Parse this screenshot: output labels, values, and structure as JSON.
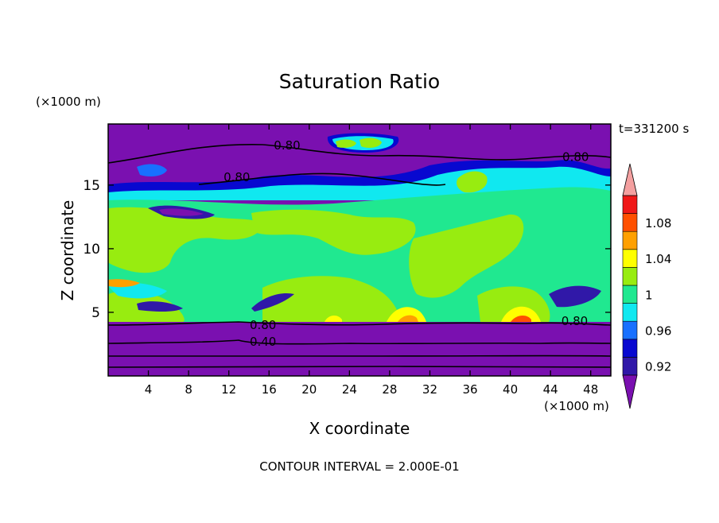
{
  "chart_data": {
    "type": "heatmap",
    "title": "Saturation Ratio",
    "xlabel": "X coordinate",
    "ylabel": "Z coordinate",
    "x_unit": "(×1000 m)",
    "y_unit": "(×1000 m)",
    "time_label": "t=331200 s",
    "footer": "CONTOUR INTERVAL = 2.000E-01",
    "xlim": [
      0,
      50
    ],
    "ylim": [
      0,
      19.8
    ],
    "x_ticks": [
      4,
      8,
      12,
      16,
      20,
      24,
      28,
      32,
      36,
      40,
      44,
      48
    ],
    "y_ticks": [
      5,
      10,
      15
    ],
    "colorbar": {
      "levels": [
        0.92,
        0.94,
        0.96,
        0.98,
        1.0,
        1.02,
        1.04,
        1.06,
        1.08,
        1.1
      ],
      "tick_labels": [
        "0.92",
        "0.96",
        "1",
        "1.04",
        "1.08"
      ],
      "tick_values": [
        0.92,
        0.96,
        1.0,
        1.04,
        1.08
      ],
      "colors": [
        "#7a10b0",
        "#3018a8",
        "#0808d0",
        "#1870ff",
        "#10e8f0",
        "#20e890",
        "#98ec10",
        "#ffff00",
        "#ffa000",
        "#ff5000",
        "#f01818",
        "#f4a0a0"
      ]
    },
    "contour_labels": [
      {
        "text": "0.80",
        "x": 17.8,
        "z": 18.1
      },
      {
        "text": "0.80",
        "x": 46.5,
        "z": 17.2
      },
      {
        "text": "0.80",
        "x": 12.8,
        "z": 15.6
      },
      {
        "text": "0.80",
        "x": 15.4,
        "z": 4.0
      },
      {
        "text": "0.40",
        "x": 15.4,
        "z": 2.7
      },
      {
        "text": "0.80",
        "x": 46.4,
        "z": 4.3
      }
    ]
  }
}
